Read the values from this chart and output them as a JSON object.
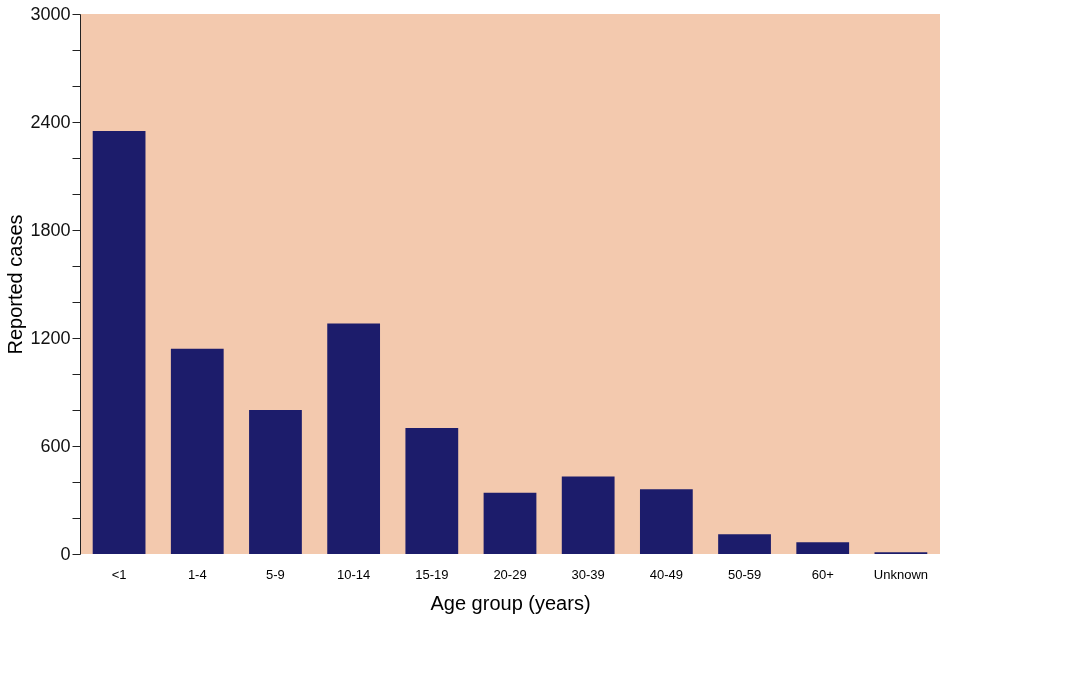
{
  "chart_data": {
    "type": "bar",
    "xlabel": "Age group (years)",
    "ylabel": "Reported cases",
    "categories": [
      "<1",
      "1-4",
      "5-9",
      "10-14",
      "15-19",
      "20-29",
      "30-39",
      "40-49",
      "50-59",
      "60+",
      "Unknown"
    ],
    "values": [
      2350,
      1140,
      800,
      1280,
      700,
      340,
      430,
      360,
      110,
      65,
      10
    ],
    "color": "#1c1c6b",
    "ylim": [
      0,
      3000
    ],
    "yticks": [
      0,
      {
        "value": 200,
        "label": null
      },
      {
        "value": 400,
        "label": null
      },
      600,
      {
        "value": 800,
        "label": null
      },
      {
        "value": 1000,
        "label": null
      },
      1200,
      {
        "value": 1400,
        "label": null
      },
      {
        "value": 1600,
        "label": null
      },
      1800,
      {
        "value": 2000,
        "label": null
      },
      {
        "value": 2200,
        "label": null
      },
      2400,
      {
        "value": 2600,
        "label": null
      },
      {
        "value": 2800,
        "label": null
      },
      3000
    ],
    "grid": false
  }
}
